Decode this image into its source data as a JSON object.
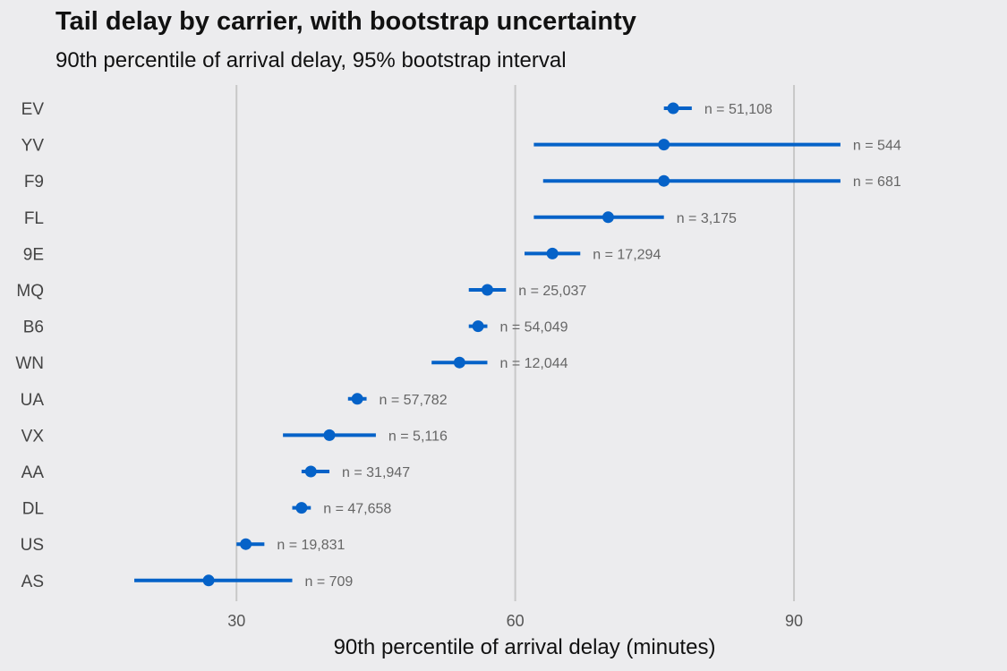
{
  "chart_data": {
    "type": "dot-interval",
    "title": "Tail delay by carrier, with bootstrap uncertainty",
    "subtitle": "90th percentile of arrival delay, 95% bootstrap interval",
    "xlabel": "90th percentile of arrival delay (minutes)",
    "ylabel": "",
    "xlim": [
      11,
      111
    ],
    "xticks": [
      30,
      60,
      90
    ],
    "grid": "vertical-major",
    "point_color": "#0562c8",
    "label_color": "#666666",
    "carriers": [
      {
        "name": "EV",
        "estimate": 77,
        "low": 76,
        "high": 79,
        "n_label": "n = 51,108"
      },
      {
        "name": "YV",
        "estimate": 76,
        "low": 62,
        "high": 95,
        "n_label": "n = 544"
      },
      {
        "name": "F9",
        "estimate": 76,
        "low": 63,
        "high": 95,
        "n_label": "n = 681"
      },
      {
        "name": "FL",
        "estimate": 70,
        "low": 62,
        "high": 76,
        "n_label": "n = 3,175"
      },
      {
        "name": "9E",
        "estimate": 64,
        "low": 61,
        "high": 67,
        "n_label": "n = 17,294"
      },
      {
        "name": "MQ",
        "estimate": 57,
        "low": 55,
        "high": 59,
        "n_label": "n = 25,037"
      },
      {
        "name": "B6",
        "estimate": 56,
        "low": 55,
        "high": 57,
        "n_label": "n = 54,049"
      },
      {
        "name": "WN",
        "estimate": 54,
        "low": 51,
        "high": 57,
        "n_label": "n = 12,044"
      },
      {
        "name": "UA",
        "estimate": 43,
        "low": 42,
        "high": 44,
        "n_label": "n = 57,782"
      },
      {
        "name": "VX",
        "estimate": 40,
        "low": 35,
        "high": 45,
        "n_label": "n = 5,116"
      },
      {
        "name": "AA",
        "estimate": 38,
        "low": 37,
        "high": 40,
        "n_label": "n = 31,947"
      },
      {
        "name": "DL",
        "estimate": 37,
        "low": 36,
        "high": 38,
        "n_label": "n = 47,658"
      },
      {
        "name": "US",
        "estimate": 31,
        "low": 30,
        "high": 33,
        "n_label": "n = 19,831"
      },
      {
        "name": "AS",
        "estimate": 27,
        "low": 19,
        "high": 36,
        "n_label": "n = 709"
      }
    ]
  }
}
